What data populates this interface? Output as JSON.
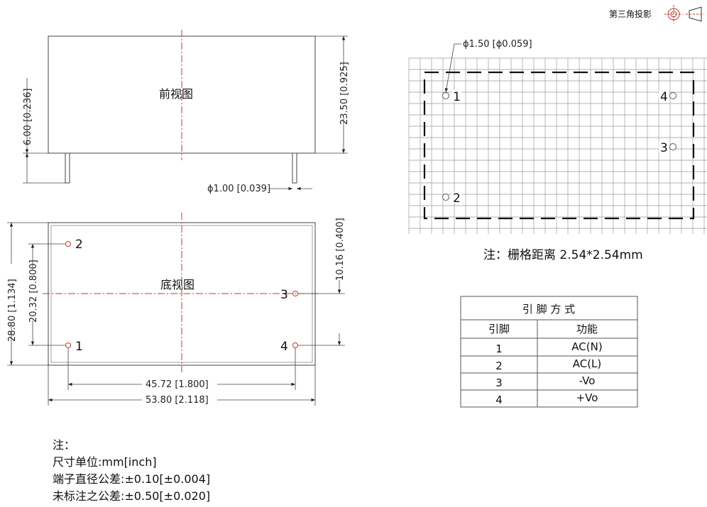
{
  "projection": {
    "label": "第三角投影"
  },
  "front_view": {
    "title": "前视图",
    "dim_pin_length": "6.00 [0.236]",
    "dim_height": "23.50 [0.925]",
    "dim_pin_diameter": "ϕ1.00 [0.039]"
  },
  "bottom_view": {
    "title": "底视图",
    "dim_overall_height": "28.80 [1.134]",
    "dim_pin_row_span": "20.32 [0.800]",
    "dim_right_pin_span": "10.16 [0.400]",
    "dim_pin_pitch": "45.72 [1.800]",
    "dim_overall_width": "53.80 [2.118]",
    "pins": [
      "1",
      "2",
      "3",
      "4"
    ]
  },
  "grid_view": {
    "hole_dim": "ϕ1.50 [ϕ0.059]",
    "pins": [
      "1",
      "2",
      "3",
      "4"
    ],
    "note": "注：栅格距离 2.54*2.54mm"
  },
  "pin_table": {
    "title": "引 脚 方 式",
    "headers": [
      "引脚",
      "功能"
    ],
    "rows": [
      {
        "pin": "1",
        "function": "AC(N)"
      },
      {
        "pin": "2",
        "function": "AC(L)"
      },
      {
        "pin": "3",
        "function": "-Vo"
      },
      {
        "pin": "4",
        "function": "+Vo"
      }
    ]
  },
  "notes": {
    "heading": "注：",
    "lines": [
      "尺寸单位:mm[inch]",
      "端子直径公差:±0.10[±0.004]",
      "未标注之公差:±0.50[±0.020]"
    ]
  }
}
